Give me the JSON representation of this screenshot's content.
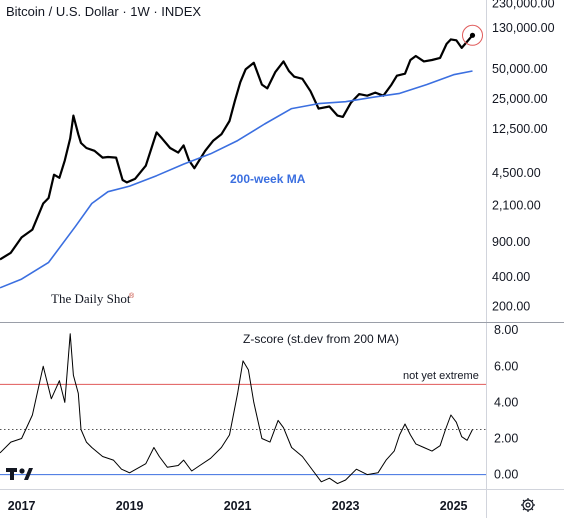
{
  "header": {
    "title": "Bitcoin / U.S. Dollar · 1W · INDEX"
  },
  "brand": {
    "name": "The Daily Shot",
    "mark": "®"
  },
  "chart_data": [
    {
      "type": "line",
      "title": "Bitcoin / U.S. Dollar · 1W · INDEX",
      "scale": "log",
      "y_ticks": [
        "230,000.00",
        "130,000.00",
        "50,000.00",
        "25,000.00",
        "12,500.00",
        "4,500.00",
        "2,100.00",
        "900.00",
        "400.00",
        "200.00"
      ],
      "y_tick_values": [
        230000,
        130000,
        50000,
        25000,
        12500,
        4500,
        2100,
        900,
        400,
        200
      ],
      "ylim": [
        140,
        250000
      ],
      "xlim": [
        2016.6,
        2025.6
      ],
      "series": [
        {
          "role": "price",
          "color": "#000000",
          "x": [
            2016.6,
            2016.8,
            2017.0,
            2017.2,
            2017.4,
            2017.5,
            2017.6,
            2017.7,
            2017.8,
            2017.9,
            2017.96,
            2018.05,
            2018.1,
            2018.2,
            2018.35,
            2018.5,
            2018.6,
            2018.75,
            2018.87,
            2018.95,
            2019.1,
            2019.3,
            2019.45,
            2019.5,
            2019.6,
            2019.75,
            2019.9,
            2020.0,
            2020.1,
            2020.2,
            2020.4,
            2020.55,
            2020.7,
            2020.85,
            2020.95,
            2021.05,
            2021.15,
            2021.3,
            2021.45,
            2021.55,
            2021.7,
            2021.85,
            2021.95,
            2022.05,
            2022.2,
            2022.35,
            2022.5,
            2022.7,
            2022.85,
            2022.95,
            2023.1,
            2023.25,
            2023.4,
            2023.55,
            2023.7,
            2023.85,
            2023.95,
            2024.1,
            2024.2,
            2024.3,
            2024.45,
            2024.6,
            2024.75,
            2024.87,
            2024.95,
            2025.05,
            2025.15,
            2025.25,
            2025.35
          ],
          "y": [
            600,
            700,
            1000,
            1200,
            2200,
            2500,
            4300,
            4000,
            6000,
            10000,
            17000,
            11000,
            9000,
            8000,
            7500,
            6400,
            6500,
            6400,
            3800,
            3600,
            3900,
            5300,
            9500,
            11500,
            10000,
            8000,
            7200,
            8500,
            6000,
            5000,
            7500,
            9500,
            11000,
            15000,
            24000,
            37000,
            50000,
            58000,
            35000,
            32000,
            47000,
            60000,
            48000,
            42000,
            40000,
            30000,
            20000,
            21000,
            17000,
            16500,
            23000,
            28000,
            27000,
            29000,
            27000,
            35000,
            43000,
            45000,
            62000,
            68000,
            60000,
            62000,
            65000,
            90000,
            100000,
            98000,
            82000,
            95000,
            110000
          ]
        },
        {
          "role": "moving_average",
          "label": "200-week MA",
          "color": "#3b6fe0",
          "x": [
            2016.6,
            2017.0,
            2017.5,
            2018.0,
            2018.3,
            2018.6,
            2019.0,
            2019.5,
            2020.0,
            2020.5,
            2021.0,
            2021.5,
            2022.0,
            2022.5,
            2023.0,
            2023.5,
            2024.0,
            2024.5,
            2025.0,
            2025.35
          ],
          "y": [
            310,
            380,
            560,
            1300,
            2200,
            2900,
            3300,
            4200,
            5500,
            7000,
            9500,
            14000,
            20000,
            22500,
            23500,
            26000,
            28500,
            35000,
            44000,
            48000
          ]
        }
      ],
      "current_marker": {
        "x": 2025.35,
        "y": 110000
      },
      "annotations": [
        "200-week MA"
      ]
    },
    {
      "type": "line",
      "title": "Z-score (st.dev from 200 MA)",
      "y_ticks": [
        "8.00",
        "6.00",
        "4.00",
        "2.00",
        "0.00"
      ],
      "y_tick_values": [
        8,
        6,
        4,
        2,
        0
      ],
      "ylim": [
        -0.8,
        8.4
      ],
      "xlim": [
        2016.6,
        2025.6
      ],
      "reference_lines": [
        {
          "value": 5.0,
          "color": "#e05a5a",
          "style": "solid"
        },
        {
          "value": 2.5,
          "color": "#555555",
          "style": "dotted"
        },
        {
          "value": 0.0,
          "color": "#3b6fe0",
          "style": "solid"
        }
      ],
      "annotations": [
        "not yet extreme"
      ],
      "series": [
        {
          "role": "z_score",
          "color": "#000000",
          "x": [
            2016.6,
            2016.8,
            2017.0,
            2017.2,
            2017.4,
            2017.55,
            2017.7,
            2017.8,
            2017.9,
            2017.96,
            2018.05,
            2018.1,
            2018.2,
            2018.3,
            2018.5,
            2018.7,
            2018.85,
            2019.0,
            2019.3,
            2019.45,
            2019.55,
            2019.7,
            2019.9,
            2020.0,
            2020.15,
            2020.3,
            2020.5,
            2020.7,
            2020.85,
            2021.0,
            2021.1,
            2021.2,
            2021.3,
            2021.45,
            2021.6,
            2021.75,
            2021.85,
            2022.0,
            2022.2,
            2022.4,
            2022.55,
            2022.7,
            2022.85,
            2023.0,
            2023.2,
            2023.4,
            2023.6,
            2023.75,
            2023.9,
            2024.0,
            2024.1,
            2024.2,
            2024.3,
            2024.45,
            2024.6,
            2024.75,
            2024.85,
            2024.95,
            2025.05,
            2025.15,
            2025.25,
            2025.35
          ],
          "y": [
            1.2,
            1.8,
            2.0,
            3.3,
            6.0,
            4.2,
            5.2,
            4.0,
            7.8,
            5.5,
            4.5,
            2.5,
            1.8,
            1.5,
            1.0,
            0.8,
            0.3,
            0.1,
            0.6,
            1.5,
            1.0,
            0.4,
            0.5,
            0.8,
            0.2,
            0.5,
            0.9,
            1.5,
            2.2,
            4.5,
            6.3,
            5.8,
            4.0,
            2.0,
            1.8,
            3.0,
            2.6,
            1.5,
            1.0,
            0.2,
            -0.4,
            -0.2,
            -0.5,
            -0.3,
            0.3,
            0.0,
            0.1,
            0.8,
            1.3,
            2.2,
            2.8,
            2.2,
            1.7,
            1.5,
            1.3,
            1.6,
            2.5,
            3.3,
            2.9,
            2.1,
            1.9,
            2.5
          ]
        }
      ]
    }
  ],
  "x_axis": {
    "labels": [
      "2017",
      "2019",
      "2021",
      "2023",
      "2025"
    ],
    "values": [
      2017,
      2019,
      2021,
      2023,
      2025
    ]
  },
  "toolbar": {
    "settings_icon": "gear-icon",
    "logo_icon": "tradingview-logo-icon"
  }
}
